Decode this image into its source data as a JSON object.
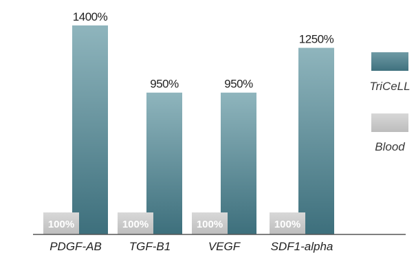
{
  "chart_data": {
    "type": "bar",
    "categories": [
      "PDGF-AB",
      "TGF-B1",
      "VEGF",
      "SDF1-alpha"
    ],
    "series": [
      {
        "name": "TriCeLL",
        "values": [
          1400,
          950,
          950,
          1250
        ],
        "labels": [
          "1400%",
          "950%",
          "950%",
          "1250%"
        ],
        "color": "#4f8390"
      },
      {
        "name": "Blood",
        "values": [
          100,
          100,
          100,
          100
        ],
        "labels": [
          "100%",
          "100%",
          "100%",
          "100%"
        ],
        "color": "#c9c9c9"
      }
    ],
    "title": "",
    "xlabel": "",
    "ylabel": "",
    "ylim": [
      0,
      1400
    ],
    "grid": false,
    "legend": "right",
    "colors": {
      "triceLL_top": "#8fb5bd",
      "triceLL_bottom": "#3d6f7c",
      "blood": "#c9c9c9",
      "baseline": "#555555"
    }
  }
}
